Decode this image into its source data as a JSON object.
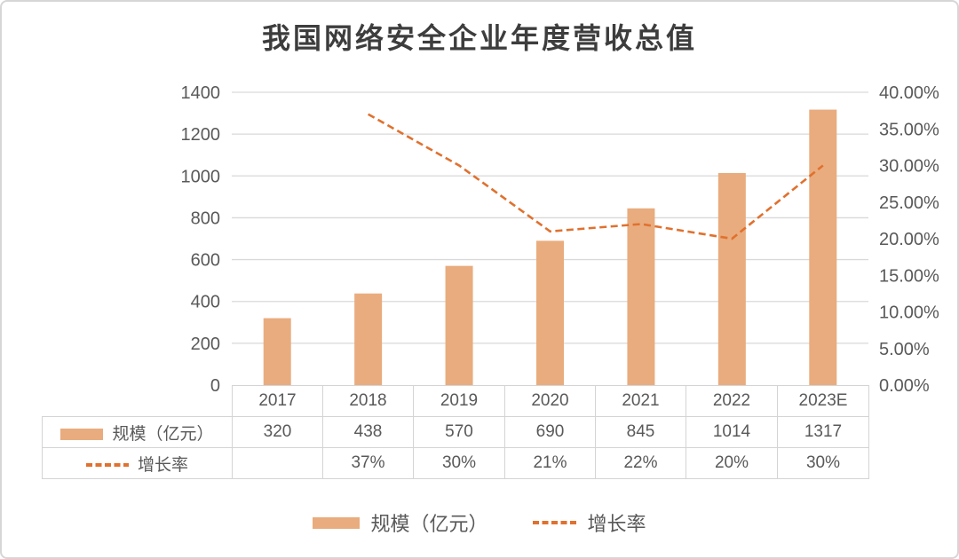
{
  "chart_data": {
    "type": "bar+line combo with data table",
    "title": "我国网络安全企业年度营收总值",
    "categories": [
      "2017",
      "2018",
      "2019",
      "2020",
      "2021",
      "2022",
      "2023E"
    ],
    "series": [
      {
        "name": "规模（亿元）",
        "type": "bar",
        "axis": "left",
        "values": [
          320,
          438,
          570,
          690,
          845,
          1014,
          1317
        ]
      },
      {
        "name": "增长率",
        "type": "line",
        "line_style": "dashed",
        "axis": "right",
        "values": [
          null,
          0.37,
          0.3,
          0.21,
          0.22,
          0.2,
          0.3
        ],
        "display_labels": [
          "",
          "37%",
          "30%",
          "21%",
          "22%",
          "20%",
          "30%"
        ]
      }
    ],
    "left_axis": {
      "min": 0,
      "max": 1400,
      "step": 200,
      "tick_labels": [
        "0",
        "200",
        "400",
        "600",
        "800",
        "1000",
        "1200",
        "1400"
      ]
    },
    "right_axis": {
      "min": 0,
      "max": 0.4,
      "step": 0.05,
      "tick_labels": [
        "0.00%",
        "5.00%",
        "10.00%",
        "15.00%",
        "20.00%",
        "25.00%",
        "30.00%",
        "35.00%",
        "40.00%"
      ]
    },
    "grid": true,
    "legend_position": "bottom",
    "table": {
      "corner": "",
      "header": [
        "2017",
        "2018",
        "2019",
        "2020",
        "2021",
        "2022",
        "2023E"
      ],
      "rows": [
        {
          "label": "规模（亿元）",
          "swatch": "bar",
          "cells": [
            "320",
            "438",
            "570",
            "690",
            "845",
            "1014",
            "1317"
          ]
        },
        {
          "label": "增长率",
          "swatch": "dash",
          "cells": [
            "",
            "37%",
            "30%",
            "21%",
            "22%",
            "20%",
            "30%"
          ]
        }
      ]
    }
  },
  "colors": {
    "bar": "#e9ac7e",
    "line": "#e0712f",
    "grid": "#d9d9d9",
    "axis_text": "#595959",
    "title_text": "#3d3d3d",
    "table_border": "#d4d4d4",
    "card_border": "#d6d6d6"
  }
}
